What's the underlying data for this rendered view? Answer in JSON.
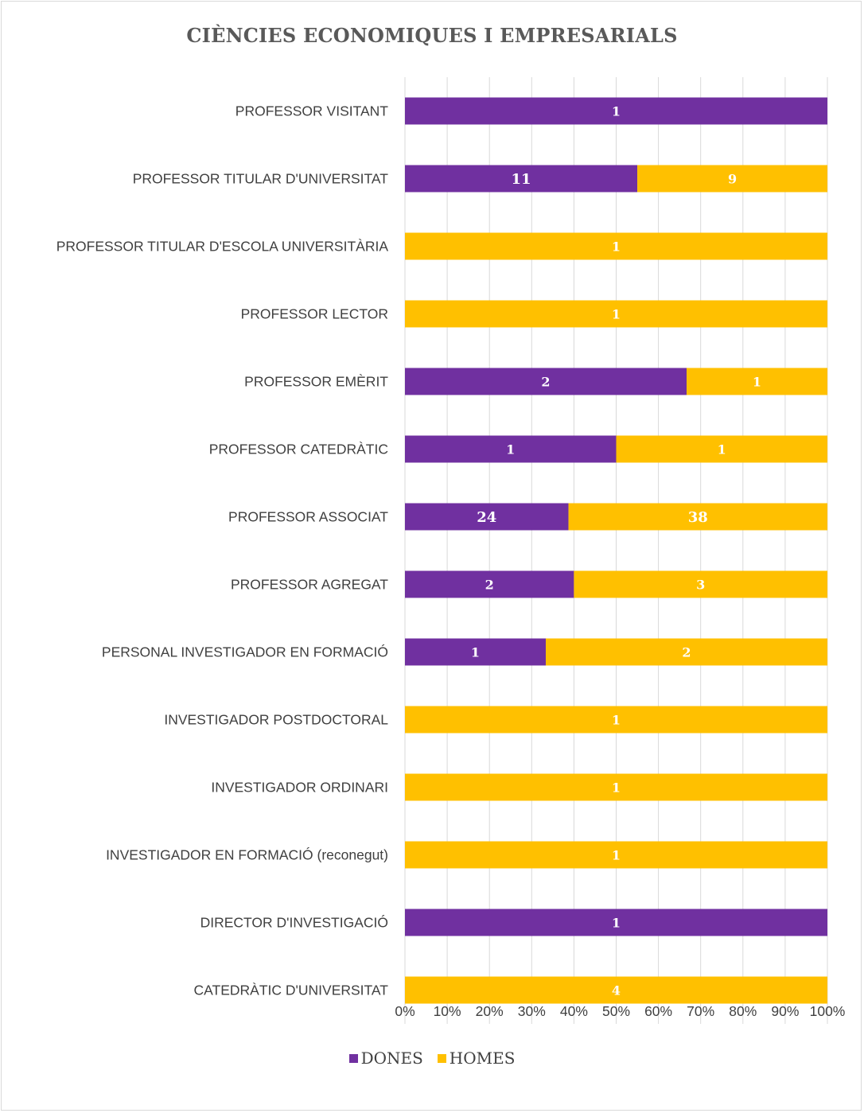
{
  "colors": {
    "dones": "#7030a0",
    "homes": "#ffc000",
    "grid": "#d9d9d9"
  },
  "chart_data": {
    "type": "bar",
    "orientation": "horizontal",
    "stacked": "percent",
    "title": "CIÈNCIES ECONOMIQUES I EMPRESARIALS",
    "categories": [
      "PROFESSOR VISITANT",
      "PROFESSOR TITULAR D'UNIVERSITAT",
      "PROFESSOR TITULAR D'ESCOLA UNIVERSITÀRIA",
      "PROFESSOR LECTOR",
      "PROFESSOR EMÈRIT",
      "PROFESSOR CATEDRÀTIC",
      "PROFESSOR ASSOCIAT",
      "PROFESSOR AGREGAT",
      "PERSONAL INVESTIGADOR EN FORMACIÓ",
      "INVESTIGADOR POSTDOCTORAL",
      "INVESTIGADOR ORDINARI",
      "INVESTIGADOR EN FORMACIÓ (reconegut)",
      "DIRECTOR D'INVESTIGACIÓ",
      "CATEDRÀTIC D'UNIVERSITAT"
    ],
    "series": [
      {
        "name": "DONES",
        "values": [
          1,
          11,
          0,
          0,
          2,
          1,
          24,
          2,
          1,
          0,
          0,
          0,
          1,
          0
        ]
      },
      {
        "name": "HOMES",
        "values": [
          0,
          9,
          1,
          1,
          1,
          1,
          38,
          3,
          2,
          1,
          1,
          1,
          0,
          4
        ]
      }
    ],
    "xticks": [
      "0%",
      "10%",
      "20%",
      "30%",
      "40%",
      "50%",
      "60%",
      "70%",
      "80%",
      "90%",
      "100%"
    ],
    "xlim": [
      0,
      100
    ],
    "grid": true,
    "legend_position": "bottom"
  }
}
